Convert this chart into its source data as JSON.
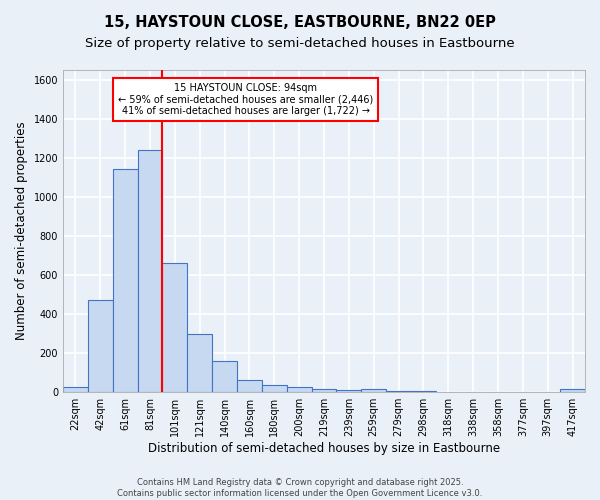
{
  "title1": "15, HAYSTOUN CLOSE, EASTBOURNE, BN22 0EP",
  "title2": "Size of property relative to semi-detached houses in Eastbourne",
  "xlabel": "Distribution of semi-detached houses by size in Eastbourne",
  "ylabel": "Number of semi-detached properties",
  "bar_labels": [
    "22sqm",
    "42sqm",
    "61sqm",
    "81sqm",
    "101sqm",
    "121sqm",
    "140sqm",
    "160sqm",
    "180sqm",
    "200sqm",
    "219sqm",
    "239sqm",
    "259sqm",
    "279sqm",
    "298sqm",
    "318sqm",
    "338sqm",
    "358sqm",
    "377sqm",
    "397sqm",
    "417sqm"
  ],
  "bar_values": [
    25,
    470,
    1145,
    1240,
    660,
    300,
    158,
    65,
    35,
    28,
    18,
    10,
    14,
    5,
    5,
    2,
    2,
    1,
    1,
    1,
    15
  ],
  "bar_color": "#c6d9f0",
  "bar_edge_color": "#4472c4",
  "vline_x_index": 3.5,
  "vline_color": "red",
  "annotation_text": "15 HAYSTOUN CLOSE: 94sqm\n← 59% of semi-detached houses are smaller (2,446)\n41% of semi-detached houses are larger (1,722) →",
  "annotation_box_color": "white",
  "annotation_box_edge_color": "red",
  "ylim": [
    0,
    1650
  ],
  "yticks": [
    0,
    200,
    400,
    600,
    800,
    1000,
    1200,
    1400,
    1600
  ],
  "footer_text": "Contains HM Land Registry data © Crown copyright and database right 2025.\nContains public sector information licensed under the Open Government Licence v3.0.",
  "background_color": "#eaf0f8",
  "grid_color": "white",
  "title1_fontsize": 10.5,
  "title2_fontsize": 9.5,
  "axis_label_fontsize": 8.5,
  "tick_fontsize": 7,
  "annotation_fontsize": 7,
  "footer_fontsize": 6
}
